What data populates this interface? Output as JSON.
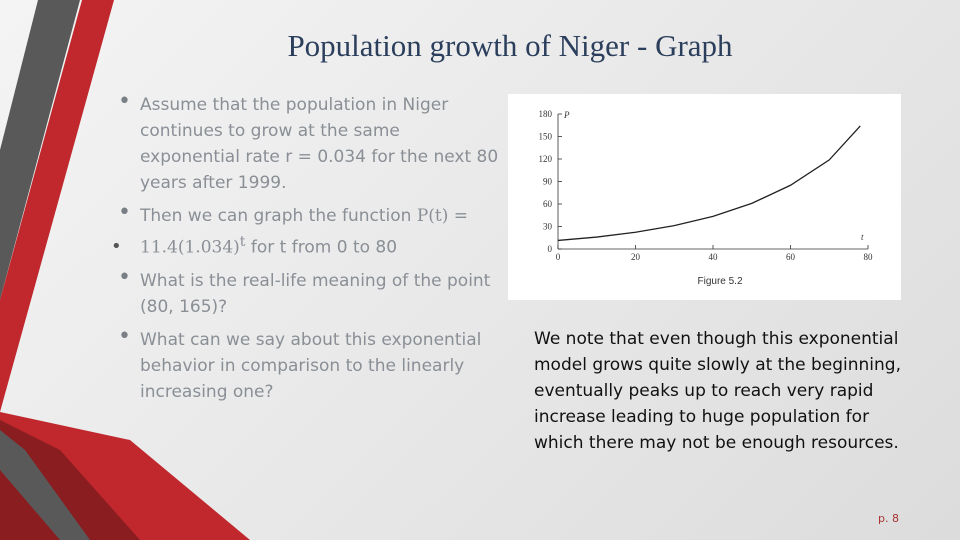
{
  "title": "Population growth of Niger - Graph",
  "bullets": [
    "Assume that the population in Niger continues to grow at the same exponential rate  r = 0.034 for the next 80 years after 1999.",
    {
      "text": "Then we can graph the function",
      "math": "P(t) = 11.4(1.034)",
      "exponent": "t",
      "rest": "for t from 0 to 80"
    },
    "What is the real-life meaning of the point (80, 165)?",
    "What can we say about this exponential behavior in comparison to the linearly increasing one?"
  ],
  "figure": {
    "type": "line",
    "ylabel": "P",
    "xlabel": "t",
    "caption": "Figure 5.2",
    "x": [
      0,
      10,
      20,
      30,
      40,
      50,
      60,
      70,
      78
    ],
    "values": [
      11.4,
      15.9,
      22.3,
      31.1,
      43.5,
      60.8,
      85,
      118.8,
      164
    ],
    "color": "#222222",
    "xlim": [
      0,
      80
    ],
    "ylim": [
      0,
      180
    ],
    "xticks": [
      0,
      20,
      40,
      60,
      80
    ],
    "yticks": [
      0,
      30,
      60,
      90,
      120,
      150,
      180
    ]
  },
  "note": "We note that even though this exponential model grows quite slowly at the beginning, eventually peaks up to reach very rapid increase leading to huge population for which there may not be enough resources.",
  "page_number": "p. 8"
}
